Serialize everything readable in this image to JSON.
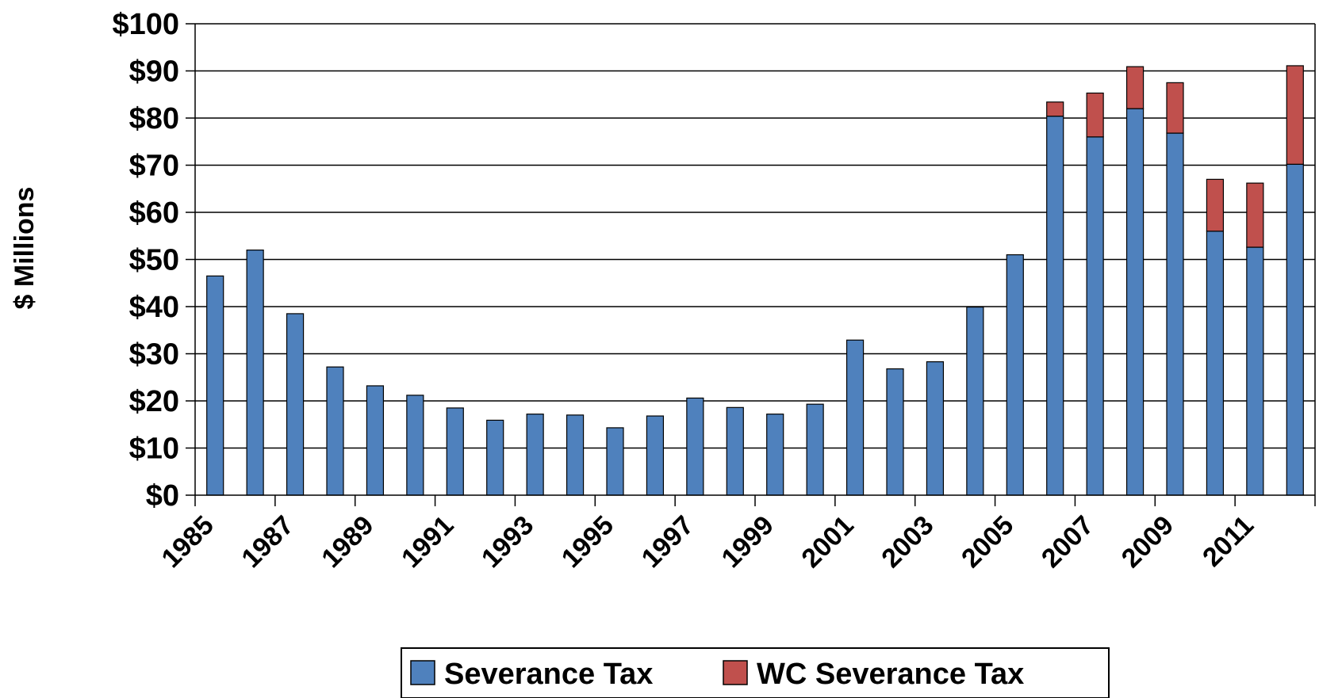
{
  "chart_data": {
    "type": "bar",
    "stacked": true,
    "title": "",
    "xlabel": "",
    "ylabel": "$ Millions",
    "ylim": [
      0,
      100
    ],
    "y_ticks": [
      "$0",
      "$10",
      "$20",
      "$30",
      "$40",
      "$50",
      "$60",
      "$70",
      "$80",
      "$90",
      "$100"
    ],
    "categories": [
      "1985",
      "1986",
      "1987",
      "1988",
      "1989",
      "1990",
      "1991",
      "1992",
      "1993",
      "1994",
      "1995",
      "1996",
      "1997",
      "1998",
      "1999",
      "2000",
      "2001",
      "2002",
      "2003",
      "2004",
      "2005",
      "2006",
      "2007",
      "2008",
      "2009",
      "2010",
      "2011",
      "2012"
    ],
    "x_tick_labels": [
      "1985",
      "1987",
      "1989",
      "1991",
      "1993",
      "1995",
      "1997",
      "1999",
      "2001",
      "2003",
      "2005",
      "2007",
      "2009",
      "2011"
    ],
    "series": [
      {
        "name": "Severance Tax",
        "color": "#4f81bd",
        "values": [
          46.5,
          52,
          38.5,
          27.2,
          23.2,
          21.2,
          18.5,
          15.9,
          17.2,
          17,
          14.3,
          16.8,
          20.6,
          18.6,
          17.2,
          19.3,
          32.9,
          26.8,
          28.3,
          39.9,
          51,
          80.4,
          76,
          82,
          76.8,
          56,
          52.6,
          70.2
        ]
      },
      {
        "name": "WC Severance Tax",
        "color": "#c0504d",
        "values": [
          0,
          0,
          0,
          0,
          0,
          0,
          0,
          0,
          0,
          0,
          0,
          0,
          0,
          0,
          0,
          0,
          0,
          0,
          0,
          0,
          0,
          3,
          9.3,
          8.9,
          10.7,
          11,
          13.6,
          20.9
        ]
      }
    ],
    "grid": true,
    "legend_position": "bottom"
  }
}
